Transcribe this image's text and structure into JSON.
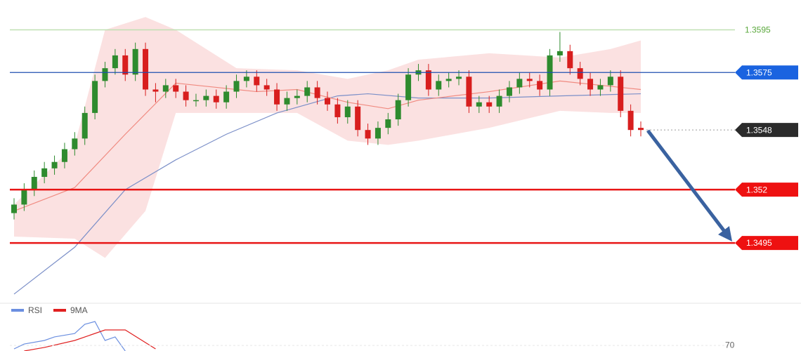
{
  "chart_data": {
    "type": "candlestick",
    "ylim": [
      1.3469,
      1.3609
    ],
    "up_color": "#2e8b2e",
    "down_color": "#d81e1e",
    "candles": {
      "open": [
        1.3509,
        1.3513,
        1.352,
        1.3526,
        1.353,
        1.3533,
        1.3539,
        1.3544,
        1.3556,
        1.3571,
        1.3577,
        1.3583,
        1.3574,
        1.3586,
        1.3567,
        1.3566,
        1.3569,
        1.3566,
        1.3562,
        1.3562,
        1.3564,
        1.3561,
        1.3566,
        1.3571,
        1.3573,
        1.3569,
        1.3567,
        1.356,
        1.3563,
        1.3564,
        1.3568,
        1.3563,
        1.356,
        1.3554,
        1.3559,
        1.3548,
        1.3544,
        1.3549,
        1.3553,
        1.3562,
        1.3574,
        1.3576,
        1.3567,
        1.3571,
        1.3572,
        1.3573,
        1.3559,
        1.3561,
        1.3559,
        1.3564,
        1.3568,
        1.3572,
        1.3571,
        1.3567,
        1.3583,
        1.3585,
        1.3577,
        1.3572,
        1.3567,
        1.3569,
        1.3573,
        1.3557,
        1.3549
      ],
      "high": [
        1.3516,
        1.3523,
        1.3529,
        1.3533,
        1.3536,
        1.3542,
        1.3547,
        1.3559,
        1.3574,
        1.358,
        1.3586,
        1.3586,
        1.3589,
        1.3589,
        1.357,
        1.3572,
        1.3572,
        1.3569,
        1.3565,
        1.3567,
        1.3567,
        1.3569,
        1.3574,
        1.3576,
        1.3576,
        1.3572,
        1.357,
        1.3566,
        1.3567,
        1.3571,
        1.3571,
        1.3566,
        1.3563,
        1.3562,
        1.3562,
        1.3551,
        1.3552,
        1.3556,
        1.3565,
        1.3577,
        1.3579,
        1.3579,
        1.3574,
        1.3575,
        1.3576,
        1.3576,
        1.3564,
        1.3564,
        1.3567,
        1.3571,
        1.3575,
        1.3575,
        1.3574,
        1.3586,
        1.3594,
        1.3588,
        1.358,
        1.3575,
        1.3572,
        1.3576,
        1.3576,
        1.356,
        1.3552
      ],
      "low": [
        1.3506,
        1.351,
        1.3517,
        1.3523,
        1.3527,
        1.353,
        1.3536,
        1.3541,
        1.3553,
        1.3568,
        1.3574,
        1.3571,
        1.3571,
        1.3564,
        1.3561,
        1.3563,
        1.3563,
        1.3559,
        1.3559,
        1.3559,
        1.3558,
        1.3558,
        1.3563,
        1.3568,
        1.3566,
        1.3564,
        1.3557,
        1.3557,
        1.356,
        1.3561,
        1.356,
        1.3557,
        1.3551,
        1.3551,
        1.3545,
        1.3541,
        1.3541,
        1.3546,
        1.355,
        1.3559,
        1.3571,
        1.3564,
        1.3564,
        1.3568,
        1.3569,
        1.3556,
        1.3556,
        1.3556,
        1.3556,
        1.3561,
        1.3565,
        1.3568,
        1.3564,
        1.3564,
        1.358,
        1.3574,
        1.3569,
        1.3564,
        1.3564,
        1.3566,
        1.3554,
        1.3545,
        1.3545
      ],
      "close": [
        1.3513,
        1.352,
        1.3526,
        1.353,
        1.3533,
        1.3539,
        1.3544,
        1.3556,
        1.3571,
        1.3577,
        1.3583,
        1.3574,
        1.3586,
        1.3567,
        1.3566,
        1.3569,
        1.3566,
        1.3562,
        1.3562,
        1.3564,
        1.3561,
        1.3566,
        1.3571,
        1.3573,
        1.3569,
        1.3567,
        1.356,
        1.3563,
        1.3564,
        1.3568,
        1.3563,
        1.356,
        1.3554,
        1.3559,
        1.3548,
        1.3544,
        1.3549,
        1.3553,
        1.3562,
        1.3574,
        1.3576,
        1.3567,
        1.3571,
        1.3572,
        1.3573,
        1.3559,
        1.3561,
        1.3559,
        1.3564,
        1.3568,
        1.3572,
        1.3571,
        1.3567,
        1.3583,
        1.3585,
        1.3577,
        1.3572,
        1.3567,
        1.3569,
        1.3573,
        1.3557,
        1.3548,
        1.3548
      ]
    },
    "band": {
      "color": "#f8c8c8",
      "x": [
        0,
        6,
        9,
        13,
        16,
        22,
        28,
        33,
        37,
        40,
        47,
        54,
        59,
        62
      ],
      "upper": [
        1.3513,
        1.3541,
        1.3595,
        1.3601,
        1.3595,
        1.3577,
        1.3576,
        1.3572,
        1.3576,
        1.3581,
        1.3584,
        1.3582,
        1.3586,
        1.359
      ],
      "lower": [
        1.3498,
        1.3497,
        1.3488,
        1.351,
        1.3556,
        1.3556,
        1.3556,
        1.3543,
        1.3541,
        1.3543,
        1.3549,
        1.3557,
        1.3556,
        1.3556
      ]
    },
    "lines": [
      {
        "color": "#7b8fc8",
        "x": [
          0,
          6,
          11,
          16,
          21,
          26,
          32,
          35,
          40,
          47,
          54,
          62
        ],
        "values": [
          1.3471,
          1.3493,
          1.352,
          1.3534,
          1.3546,
          1.3556,
          1.3564,
          1.3565,
          1.3563,
          1.3563,
          1.3564,
          1.3565
        ]
      },
      {
        "color": "#f08a80",
        "x": [
          0,
          6,
          11,
          16,
          20,
          24,
          28,
          33,
          37,
          40,
          47,
          54,
          62
        ],
        "values": [
          1.351,
          1.3521,
          1.3546,
          1.357,
          1.3568,
          1.3566,
          1.3567,
          1.3561,
          1.3558,
          1.3562,
          1.3566,
          1.3571,
          1.3567
        ]
      }
    ],
    "levels": [
      {
        "value": 1.3595,
        "color": "#5aa83c",
        "line_color": "#bfe0b2",
        "tag": false,
        "width": 1.5
      },
      {
        "value": 1.3575,
        "color": "#1a63e0",
        "line_color": "#1f4fb0",
        "tag": true,
        "width": 1.2
      },
      {
        "value": 1.3548,
        "color": "#2b2b2b",
        "line_color": "#9a9a9a",
        "tag": true,
        "dashed": true,
        "width": 1
      },
      {
        "value": 1.352,
        "color": "#ee1111",
        "line_color": "#e81515",
        "tag": true,
        "width": 2.5
      },
      {
        "value": 1.3495,
        "color": "#ee1111",
        "line_color": "#e81515",
        "tag": true,
        "width": 2.5
      }
    ],
    "rsi": {
      "ylim": [
        65,
        103
      ],
      "yticks": [
        70
      ],
      "series": [
        {
          "name": "RSI",
          "color": "#6b8fe0",
          "x": [
            0,
            1,
            3,
            4,
            6,
            7,
            8,
            9,
            10,
            11
          ],
          "values": [
            66.9,
            71.3,
            74.5,
            77.7,
            80.8,
            89.1,
            91.6,
            74.5,
            77.7,
            65
          ]
        },
        {
          "name": "9MA",
          "color": "#e02020",
          "x": [
            1,
            3,
            6,
            9,
            11,
            14
          ],
          "values": [
            65,
            68.2,
            74.5,
            84,
            84,
            66.9
          ]
        }
      ]
    }
  }
}
